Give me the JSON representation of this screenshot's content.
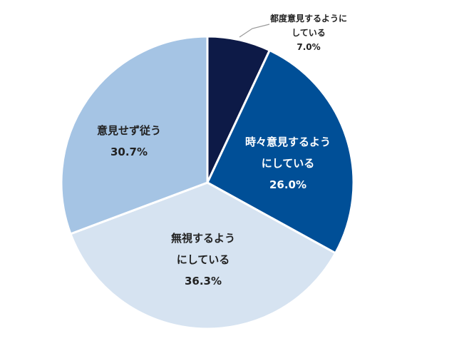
{
  "chart_data": {
    "type": "pie",
    "slices": [
      {
        "label_lines": [
          "都度意見するように",
          "している"
        ],
        "value": 7.0,
        "value_text": "7.0%",
        "color": "#0d1a47",
        "text_color": "#222222"
      },
      {
        "label_lines": [
          "時々意見するよう",
          "にしている"
        ],
        "value": 26.0,
        "value_text": "26.0%",
        "color": "#004f97",
        "text_color": "#ffffff"
      },
      {
        "label_lines": [
          "無視するよう",
          "にしている"
        ],
        "value": 36.3,
        "value_text": "36.3%",
        "color": "#d6e3f1",
        "text_color": "#222222"
      },
      {
        "label_lines": [
          "意見せず従う"
        ],
        "value": 30.7,
        "value_text": "30.7%",
        "color": "#a5c4e4",
        "text_color": "#222222"
      }
    ]
  }
}
